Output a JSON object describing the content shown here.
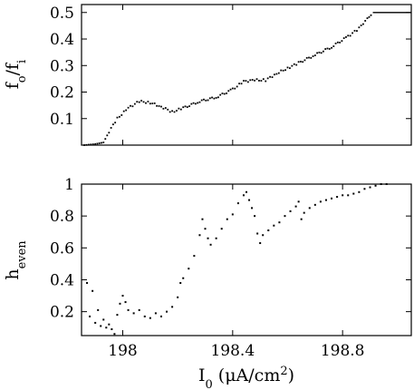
{
  "chart_data": [
    {
      "type": "scatter",
      "ylabel_main": "f",
      "ylabel_sub_1": "o",
      "ylabel_slash": "/f",
      "ylabel_sub_2": "i",
      "xlim": [
        197.85,
        199.05
      ],
      "ylim": [
        0,
        0.53
      ],
      "yticks": [
        "0.1",
        "0.2",
        "0.3",
        "0.4",
        "0.5"
      ],
      "ytick_values": [
        0.1,
        0.2,
        0.3,
        0.4,
        0.5
      ],
      "xtick_values": [
        198,
        198.4,
        198.8
      ],
      "curve": [
        [
          197.86,
          0.0
        ],
        [
          197.9,
          0.004
        ],
        [
          197.93,
          0.01
        ],
        [
          197.95,
          0.05
        ],
        [
          197.98,
          0.1
        ],
        [
          198.02,
          0.14
        ],
        [
          198.06,
          0.165
        ],
        [
          198.1,
          0.16
        ],
        [
          198.14,
          0.145
        ],
        [
          198.18,
          0.125
        ],
        [
          198.22,
          0.14
        ],
        [
          198.28,
          0.165
        ],
        [
          198.34,
          0.18
        ],
        [
          198.4,
          0.21
        ],
        [
          198.44,
          0.24
        ],
        [
          198.48,
          0.245
        ],
        [
          198.52,
          0.245
        ],
        [
          198.56,
          0.27
        ],
        [
          198.6,
          0.29
        ],
        [
          198.64,
          0.31
        ],
        [
          198.7,
          0.34
        ],
        [
          198.76,
          0.37
        ],
        [
          198.82,
          0.41
        ],
        [
          198.86,
          0.44
        ],
        [
          198.89,
          0.48
        ],
        [
          198.91,
          0.5
        ]
      ],
      "final_step": [
        [
          198.91,
          0.5
        ],
        [
          199.05,
          0.5
        ]
      ]
    },
    {
      "type": "scatter",
      "ylabel_main": "h",
      "ylabel_sub": "even",
      "xlabel_main": "I",
      "xlabel_sub": "0",
      "xlabel_unit": " (μA/cm",
      "xlabel_sup": "2",
      "xlabel_close": ")",
      "xlim": [
        197.85,
        199.05
      ],
      "ylim": [
        0.05,
        1.0
      ],
      "yticks": [
        "0.2",
        "0.4",
        "0.6",
        "0.8",
        "1"
      ],
      "ytick_values": [
        0.2,
        0.4,
        0.6,
        0.8,
        1.0
      ],
      "xticks": [
        "198",
        "198.4",
        "198.8"
      ],
      "xtick_values": [
        198,
        198.4,
        198.8
      ],
      "points": [
        [
          197.87,
          0.38
        ],
        [
          197.88,
          0.17
        ],
        [
          197.89,
          0.33
        ],
        [
          197.9,
          0.13
        ],
        [
          197.91,
          0.21
        ],
        [
          197.92,
          0.11
        ],
        [
          197.93,
          0.15
        ],
        [
          197.94,
          0.1
        ],
        [
          197.95,
          0.12
        ],
        [
          197.96,
          0.09
        ],
        [
          197.97,
          0.06
        ],
        [
          197.98,
          0.18
        ],
        [
          197.99,
          0.25
        ],
        [
          198.0,
          0.3
        ],
        [
          198.01,
          0.26
        ],
        [
          198.02,
          0.21
        ],
        [
          198.04,
          0.19
        ],
        [
          198.06,
          0.21
        ],
        [
          198.08,
          0.17
        ],
        [
          198.1,
          0.16
        ],
        [
          198.12,
          0.19
        ],
        [
          198.14,
          0.17
        ],
        [
          198.16,
          0.2
        ],
        [
          198.18,
          0.23
        ],
        [
          198.2,
          0.29
        ],
        [
          198.21,
          0.38
        ],
        [
          198.22,
          0.41
        ],
        [
          198.24,
          0.47
        ],
        [
          198.26,
          0.55
        ],
        [
          198.28,
          0.68
        ],
        [
          198.29,
          0.78
        ],
        [
          198.3,
          0.72
        ],
        [
          198.31,
          0.66
        ],
        [
          198.32,
          0.62
        ],
        [
          198.34,
          0.66
        ],
        [
          198.36,
          0.72
        ],
        [
          198.38,
          0.78
        ],
        [
          198.4,
          0.81
        ],
        [
          198.42,
          0.88
        ],
        [
          198.44,
          0.93
        ],
        [
          198.45,
          0.95
        ],
        [
          198.46,
          0.9
        ],
        [
          198.47,
          0.85
        ],
        [
          198.48,
          0.8
        ],
        [
          198.49,
          0.69
        ],
        [
          198.5,
          0.63
        ],
        [
          198.51,
          0.68
        ],
        [
          198.53,
          0.71
        ],
        [
          198.55,
          0.74
        ],
        [
          198.57,
          0.76
        ],
        [
          198.59,
          0.8
        ],
        [
          198.61,
          0.83
        ],
        [
          198.63,
          0.86
        ],
        [
          198.64,
          0.89
        ],
        [
          198.65,
          0.78
        ],
        [
          198.66,
          0.82
        ],
        [
          198.68,
          0.85
        ],
        [
          198.7,
          0.87
        ],
        [
          198.72,
          0.89
        ],
        [
          198.74,
          0.9
        ],
        [
          198.76,
          0.91
        ],
        [
          198.78,
          0.92
        ],
        [
          198.8,
          0.93
        ],
        [
          198.82,
          0.93
        ],
        [
          198.84,
          0.94
        ],
        [
          198.86,
          0.95
        ],
        [
          198.88,
          0.97
        ],
        [
          198.9,
          0.98
        ],
        [
          198.92,
          0.99
        ],
        [
          198.94,
          1.0
        ],
        [
          198.96,
          1.0
        ]
      ]
    }
  ]
}
